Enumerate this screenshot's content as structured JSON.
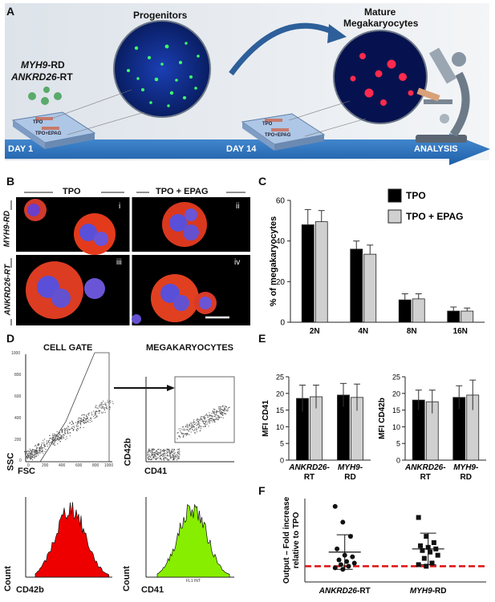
{
  "panelA": {
    "letter": "A",
    "progenitors": "Progenitors",
    "mature_line1": "Mature",
    "mature_line2": "Megakaryocytes",
    "gene1": "MYH9",
    "gene1_suffix": "-RD",
    "gene2": "ANKRD26",
    "gene2_suffix": "-RT",
    "plate_tpo": "TPO",
    "plate_tpo_epag": "TPO+EPAG",
    "day1": "DAY 1",
    "day14": "DAY 14",
    "analysis": "ANALYSIS"
  },
  "panelB": {
    "letter": "B",
    "col_tpo": "TPO",
    "col_tpo_epag": "TPO + EPAG",
    "row_myh9": "MYH9-RD",
    "row_ankrd26": "ANKRD26-RT",
    "tiles": [
      "i",
      "ii",
      "iii",
      "iv"
    ]
  },
  "panelC": {
    "letter": "C",
    "chart_data": {
      "type": "bar",
      "categories": [
        "2N",
        "4N",
        "8N",
        "16N"
      ],
      "series": [
        {
          "name": "TPO",
          "values": [
            48,
            36,
            11,
            5.5
          ],
          "errors": [
            7.5,
            4,
            3,
            2
          ]
        },
        {
          "name": "TPO + EPAG",
          "values": [
            49.5,
            33.5,
            11.5,
            5.5
          ],
          "errors": [
            5.5,
            4.5,
            2.5,
            1.5
          ]
        }
      ],
      "ylabel": "% of megakaryocytes",
      "ylim": [
        0,
        60
      ],
      "yticks": [
        0,
        20,
        40,
        60
      ],
      "legend_colors": [
        "#000000",
        "#d0d0d0"
      ]
    }
  },
  "panelD": {
    "letter": "D",
    "cell_gate": "CELL GATE",
    "megakaryocytes": "MEGAKARYOCYTES",
    "ssc": "SSC",
    "fsc": "FSC",
    "cd42b": "CD42b",
    "cd41": "CD41",
    "count": "Count",
    "fl1": "FL1 INT",
    "ticks": [
      "1000",
      "800",
      "600",
      "400",
      "200",
      "0",
      "0",
      "200",
      "400",
      "600",
      "800",
      "1000"
    ],
    "hist_colors": [
      "#ee0000",
      "#88ee00"
    ]
  },
  "panelE": {
    "letter": "E",
    "chart_data": [
      {
        "type": "bar",
        "categories": [
          "ANKRD26-RT",
          "MYH9-RD"
        ],
        "category_parts": [
          [
            "ANKRD26-",
            "RT"
          ],
          [
            "MYH9-",
            "RD"
          ]
        ],
        "series": [
          {
            "name": "TPO",
            "values": [
              18.5,
              19.5
            ],
            "errors": [
              4,
              3.5
            ]
          },
          {
            "name": "TPO + EPAG",
            "values": [
              19,
              18.8
            ],
            "errors": [
              3.5,
              4
            ]
          }
        ],
        "ylabel": "MFI CD41",
        "ylim": [
          0,
          25
        ],
        "yticks": [
          0,
          5,
          10,
          15,
          20,
          25
        ]
      },
      {
        "type": "bar",
        "categories": [
          "ANKRD26-RT",
          "MYH9-RD"
        ],
        "category_parts": [
          [
            "ANKRD26-",
            "RT"
          ],
          [
            "MYH9-",
            "RD"
          ]
        ],
        "series": [
          {
            "name": "TPO",
            "values": [
              18,
              18.8
            ],
            "errors": [
              3,
              3.5
            ]
          },
          {
            "name": "TPO + EPAG",
            "values": [
              17.5,
              19.5
            ],
            "errors": [
              3.5,
              4.5
            ]
          }
        ],
        "ylabel": "MFI CD42b",
        "ylim": [
          0,
          25
        ],
        "yticks": [
          0,
          5,
          10,
          15,
          20,
          25
        ]
      }
    ]
  },
  "panelF": {
    "letter": "F",
    "chart_data": {
      "type": "scatter",
      "categories": [
        "ANKRD26-RT",
        "MYH9-RD"
      ],
      "category_parts": [
        [
          "ANKRD26",
          "-RT"
        ],
        [
          "MYH9",
          "-RD"
        ]
      ],
      "series": [
        {
          "name": "ANKRD26-RT",
          "marker": "circle",
          "values": [
            4.8,
            3.8,
            2.9,
            2.1,
            1.7,
            1.6,
            1.4,
            1.3,
            1.2,
            1.1,
            1.0,
            0.9,
            0.8
          ],
          "mean": 1.9,
          "sd_low": 0.8,
          "sd_high": 3.0
        },
        {
          "name": "MYH9-RD",
          "marker": "square",
          "values": [
            4.1,
            2.9,
            2.5,
            2.3,
            2.2,
            2.1,
            2.0,
            1.9,
            1.7,
            1.5,
            1.2,
            1.1,
            1.0
          ],
          "mean": 2.1,
          "sd_low": 1.1,
          "sd_high": 3.1
        }
      ],
      "reference_line": 1,
      "ylabel_line1": "Output – Fold increase",
      "ylabel_line2": "relative to TPO",
      "ylim": [
        0,
        5.3
      ],
      "reference_color": "#dd1111"
    }
  }
}
